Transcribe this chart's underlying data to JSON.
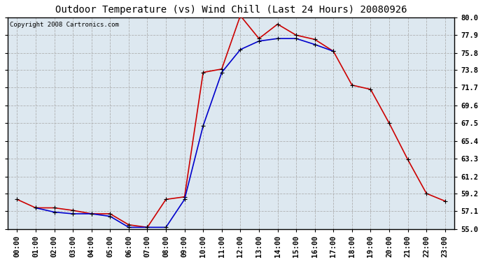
{
  "title": "Outdoor Temperature (vs) Wind Chill (Last 24 Hours) 20080926",
  "copyright": "Copyright 2008 Cartronics.com",
  "x_labels": [
    "00:00",
    "01:00",
    "02:00",
    "03:00",
    "04:00",
    "05:00",
    "06:00",
    "07:00",
    "08:00",
    "09:00",
    "10:00",
    "11:00",
    "12:00",
    "13:00",
    "14:00",
    "15:00",
    "16:00",
    "17:00",
    "18:00",
    "19:00",
    "20:00",
    "21:00",
    "22:00",
    "23:00"
  ],
  "outdoor_temp": [
    58.5,
    57.5,
    57.5,
    57.2,
    56.8,
    56.8,
    55.5,
    55.2,
    58.5,
    58.8,
    73.5,
    73.9,
    80.2,
    77.5,
    79.2,
    77.9,
    77.4,
    76.0,
    72.0,
    71.5,
    67.5,
    63.2,
    59.2,
    58.3
  ],
  "wind_chill": [
    null,
    57.5,
    57.0,
    56.8,
    56.8,
    56.5,
    55.2,
    55.2,
    55.2,
    58.5,
    67.2,
    73.5,
    76.2,
    77.2,
    77.5,
    77.5,
    76.8,
    76.0,
    null,
    null,
    null,
    null,
    null,
    null
  ],
  "temp_color": "#cc0000",
  "chill_color": "#0000cc",
  "marker": "+",
  "markersize": 5,
  "linewidth": 1.2,
  "ylim": [
    55.0,
    80.0
  ],
  "yticks": [
    55.0,
    57.1,
    59.2,
    61.2,
    63.3,
    65.4,
    67.5,
    69.6,
    71.7,
    73.8,
    75.8,
    77.9,
    80.0
  ],
  "background_color": "#ffffff",
  "plot_bg_color": "#dde8f0",
  "grid_color": "#aaaaaa",
  "title_fontsize": 10,
  "tick_fontsize": 7.5,
  "copyright_fontsize": 6.5
}
